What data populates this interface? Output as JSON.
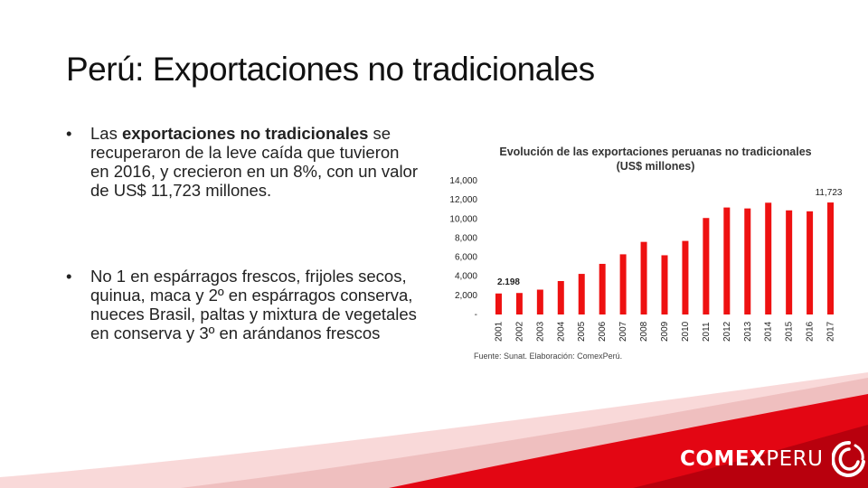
{
  "slide": {
    "title": "Perú: Exportaciones no tradicionales",
    "bullet_marker": "•",
    "bullet1": {
      "pre": "Las ",
      "bold": "exportaciones no tradicionales",
      "post": " se recuperaron de la leve caída que tuvieron en 2016, y crecieron en un 8%, con un valor de US$ 11,723 millones."
    },
    "bullet2": {
      "text": "No 1  en espárragos frescos, frijoles secos, quinua, maca y 2º en espárragos conserva, nueces Brasil, paltas y mixtura de vegetales en conserva y 3º en arándanos frescos"
    }
  },
  "chart_data": {
    "type": "bar",
    "title_line1": "Evolución de las exportaciones peruanas no tradicionales",
    "title_line2": "(US$ millones)",
    "source": "Fuente: Sunat. Elaboración: ComexPerú.",
    "categories": [
      "2001",
      "2002",
      "2003",
      "2004",
      "2005",
      "2006",
      "2007",
      "2008",
      "2009",
      "2010",
      "2011",
      "2012",
      "2013",
      "2014",
      "2015",
      "2016",
      "2017"
    ],
    "values": [
      2198,
      2250,
      2600,
      3500,
      4250,
      5300,
      6300,
      7600,
      6200,
      7700,
      10100,
      11200,
      11100,
      11700,
      10900,
      10800,
      11723
    ],
    "data_labels": {
      "first": "2.198",
      "last": "11,723"
    },
    "y_ticks": [
      "-",
      "2,000",
      "4,000",
      "6,000",
      "8,000",
      "10,000",
      "12,000",
      "14,000"
    ],
    "ylim": [
      0,
      14000
    ],
    "bar_color": "#ee1111",
    "grid": false
  },
  "brand": {
    "logo_bold": "COMEX",
    "logo_light": "PERU",
    "accent": "#e30613",
    "accent_dark": "#a8000b"
  }
}
